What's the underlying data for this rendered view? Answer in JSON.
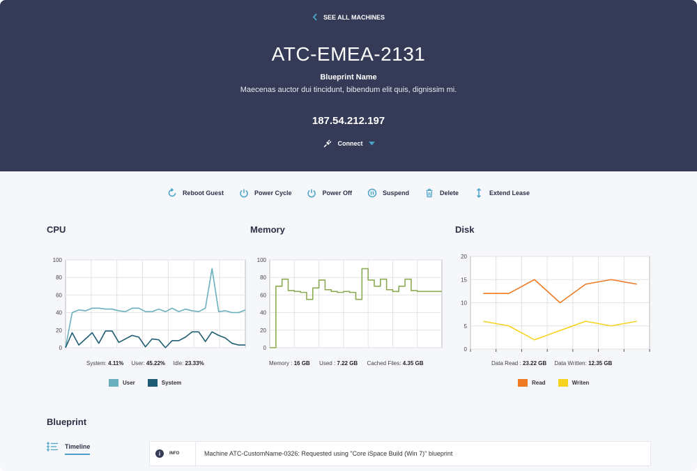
{
  "header": {
    "back_label": "SEE ALL MACHINES",
    "machine_name": "ATC-EMEA-2131",
    "blueprint_label": "Blueprint Name",
    "blueprint_desc": "Maecenas auctor dui tincidunt, bibendum elit quis, dignissim mi.",
    "ip": "187.54.212.197",
    "connect_label": "Connect"
  },
  "actions": [
    {
      "label": "Reboot Guest",
      "icon": "reboot-icon"
    },
    {
      "label": "Power Cycle",
      "icon": "power-cycle-icon"
    },
    {
      "label": "Power Off",
      "icon": "power-off-icon"
    },
    {
      "label": "Suspend",
      "icon": "suspend-icon"
    },
    {
      "label": "Delete",
      "icon": "trash-icon"
    },
    {
      "label": "Extend Lease",
      "icon": "extend-arrows-icon"
    }
  ],
  "colors": {
    "accent": "#4aa3c7",
    "header_bg": "#353a56",
    "cpu_user": "#6aafbd",
    "cpu_system": "#1f5c73",
    "memory": "#8aab52",
    "disk_read": "#ef7a24",
    "disk_written": "#f7d21e"
  },
  "cpu": {
    "title": "CPU",
    "stats": {
      "system_label": "System:",
      "system_value": "4.11%",
      "user_label": "User:",
      "user_value": "45.22%",
      "idle_label": "Idle:",
      "idle_value": "23.33%"
    },
    "legend": [
      "User",
      "System"
    ]
  },
  "memory": {
    "title": "Memory",
    "stats": {
      "memory_label": "Memory :",
      "memory_value": "16 GB",
      "used_label": "Used :",
      "used_value": "7.22 GB",
      "cached_label": "Cached Files:",
      "cached_value": "4.35 GB"
    }
  },
  "disk": {
    "title": "Disk",
    "stats": {
      "read_label": "Data Read :",
      "read_value": "23.22 GB",
      "written_label": "Data Written:",
      "written_value": "12.35 GB"
    },
    "legend": [
      "Read",
      "Writen"
    ]
  },
  "blueprint": {
    "title": "Blueprint",
    "timeline_label": "Timeline",
    "entry_level": "INFO",
    "entry_message": "Machine ATC-CustomName-0326: Requested using \"Core iSpace Build (Win 7)\" blueprint"
  },
  "chart_data": [
    {
      "type": "line",
      "title": "CPU",
      "ylim": [
        0,
        100
      ],
      "yticks": [
        0,
        20,
        40,
        60,
        80,
        100
      ],
      "grid": true,
      "legend_position": "bottom",
      "x": [
        0,
        1,
        2,
        3,
        4,
        5,
        6,
        7,
        8,
        9,
        10,
        11,
        12,
        13,
        14,
        15,
        16,
        17,
        18,
        19,
        20,
        21,
        22,
        23,
        24,
        25,
        26,
        27
      ],
      "series": [
        {
          "name": "User",
          "values": [
            0,
            40,
            43,
            42,
            45,
            45,
            44,
            44,
            42,
            41,
            45,
            45,
            41,
            41,
            44,
            41,
            45,
            41,
            44,
            42,
            41,
            45,
            90,
            41,
            42,
            40,
            40,
            43
          ]
        },
        {
          "name": "System",
          "values": [
            0,
            17,
            3,
            10,
            17,
            5,
            19,
            19,
            6,
            10,
            14,
            12,
            1,
            10,
            9,
            0,
            8,
            8,
            12,
            18,
            18,
            7,
            18,
            14,
            11,
            5,
            3,
            3
          ]
        }
      ]
    },
    {
      "type": "line",
      "title": "Memory",
      "ylim": [
        0,
        100
      ],
      "yticks": [
        0,
        20,
        40,
        60,
        80,
        100
      ],
      "grid": true,
      "step": true,
      "x": [
        0,
        1,
        2,
        3,
        4,
        5,
        6,
        7,
        8,
        9,
        10,
        11,
        12,
        13,
        14,
        15,
        16,
        17,
        18,
        19,
        20,
        21,
        22,
        23,
        24,
        25,
        26,
        27
      ],
      "series": [
        {
          "name": "Memory",
          "values": [
            0,
            70,
            78,
            65,
            64,
            63,
            55,
            68,
            77,
            66,
            64,
            63,
            64,
            63,
            55,
            90,
            77,
            70,
            78,
            66,
            64,
            70,
            78,
            65,
            64,
            64,
            64,
            64
          ]
        }
      ]
    },
    {
      "type": "line",
      "title": "Disk",
      "ylim": [
        0,
        20
      ],
      "yticks": [
        0,
        5,
        10,
        15,
        20
      ],
      "grid": true,
      "legend_position": "bottom",
      "x": [
        0,
        1,
        2,
        3,
        4,
        5,
        6
      ],
      "series": [
        {
          "name": "Read",
          "values": [
            12,
            12,
            15,
            10,
            14,
            15,
            14
          ]
        },
        {
          "name": "Writen",
          "values": [
            6,
            5,
            2,
            4,
            6,
            5,
            6
          ]
        }
      ]
    }
  ]
}
